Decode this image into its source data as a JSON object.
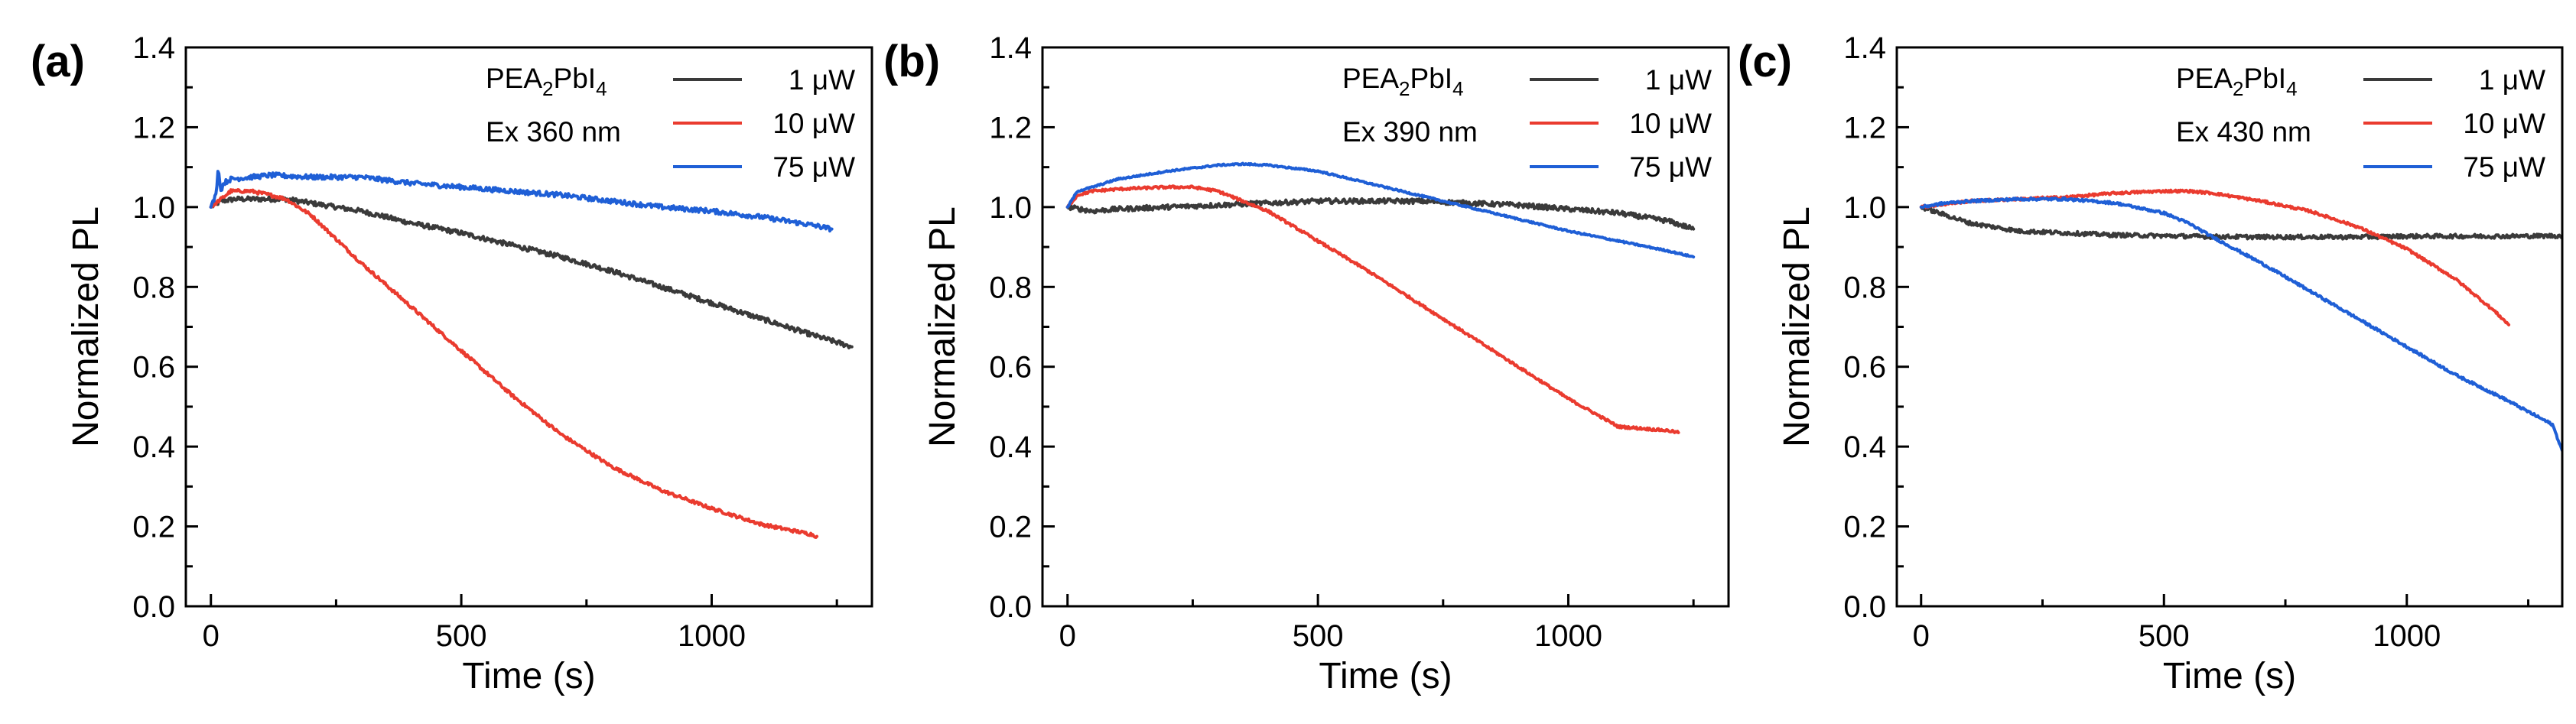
{
  "chart_data": [
    {
      "type": "line",
      "panel_label": "(a)",
      "sample": {
        "base1": "PEA",
        "sub1": "2",
        "base2": "PbI",
        "sub2": "4"
      },
      "excitation": "Ex 360 nm",
      "xlabel": "Time (s)",
      "ylabel": "Normalized PL",
      "xlim": [
        -50,
        1320
      ],
      "ylim": [
        0.0,
        1.4
      ],
      "xticks": [
        0,
        500,
        1000
      ],
      "xtick_labels": [
        "0",
        "500",
        "1000"
      ],
      "yticks": [
        0.0,
        0.2,
        0.4,
        0.6,
        0.8,
        1.0,
        1.2,
        1.4
      ],
      "ytick_labels": [
        "0.0",
        "0.2",
        "0.4",
        "0.6",
        "0.8",
        "1.0",
        "1.2",
        "1.4"
      ],
      "legend_position": "top-right",
      "series": [
        {
          "name": "1 μW",
          "color": "#3a3a3a",
          "noise": 0.006,
          "x": [
            0,
            20,
            50,
            100,
            150,
            200,
            250,
            300,
            400,
            500,
            600,
            700,
            800,
            900,
            1000,
            1100,
            1200,
            1280
          ],
          "y": [
            1.0,
            1.015,
            1.02,
            1.02,
            1.02,
            1.01,
            1.0,
            0.99,
            0.96,
            0.935,
            0.905,
            0.875,
            0.84,
            0.8,
            0.76,
            0.72,
            0.68,
            0.65
          ]
        },
        {
          "name": "10 μW",
          "color": "#ea3b2f",
          "noise": 0.004,
          "x": [
            0,
            20,
            40,
            80,
            120,
            150,
            200,
            250,
            300,
            400,
            500,
            600,
            700,
            800,
            900,
            1000,
            1100,
            1200,
            1210
          ],
          "y": [
            1.0,
            1.02,
            1.04,
            1.04,
            1.03,
            1.02,
            0.98,
            0.92,
            0.86,
            0.75,
            0.64,
            0.53,
            0.43,
            0.35,
            0.29,
            0.245,
            0.205,
            0.18,
            0.175
          ]
        },
        {
          "name": "75 μW",
          "color": "#1f5fd6",
          "noise": 0.006,
          "x": [
            0,
            10,
            15,
            20,
            25,
            40,
            80,
            120,
            200,
            300,
            400,
            500,
            600,
            700,
            800,
            900,
            1000,
            1100,
            1200,
            1240
          ],
          "y": [
            1.0,
            1.03,
            1.1,
            1.04,
            1.06,
            1.07,
            1.075,
            1.08,
            1.075,
            1.075,
            1.06,
            1.05,
            1.04,
            1.03,
            1.015,
            1.0,
            0.99,
            0.975,
            0.955,
            0.945
          ]
        }
      ]
    },
    {
      "type": "line",
      "panel_label": "(b)",
      "sample": {
        "base1": "PEA",
        "sub1": "2",
        "base2": "PbI",
        "sub2": "4"
      },
      "excitation": "Ex 390 nm",
      "xlabel": "Time (s)",
      "ylabel": "Normalized PL",
      "xlim": [
        -50,
        1320
      ],
      "ylim": [
        0.0,
        1.4
      ],
      "xticks": [
        0,
        500,
        1000
      ],
      "xtick_labels": [
        "0",
        "500",
        "1000"
      ],
      "yticks": [
        0.0,
        0.2,
        0.4,
        0.6,
        0.8,
        1.0,
        1.2,
        1.4
      ],
      "ytick_labels": [
        "0.0",
        "0.2",
        "0.4",
        "0.6",
        "0.8",
        "1.0",
        "1.2",
        "1.4"
      ],
      "legend_position": "top-right",
      "series": [
        {
          "name": "1 μW",
          "color": "#3a3a3a",
          "noise": 0.006,
          "x": [
            0,
            50,
            100,
            200,
            300,
            400,
            500,
            600,
            700,
            800,
            900,
            1000,
            1100,
            1200,
            1250
          ],
          "y": [
            1.0,
            0.99,
            0.995,
            1.0,
            1.005,
            1.01,
            1.015,
            1.015,
            1.015,
            1.01,
            1.005,
            0.995,
            0.985,
            0.965,
            0.945
          ]
        },
        {
          "name": "10 μW",
          "color": "#ea3b2f",
          "noise": 0.003,
          "x": [
            0,
            20,
            50,
            100,
            200,
            250,
            300,
            400,
            500,
            600,
            700,
            800,
            900,
            1000,
            1100,
            1200,
            1220
          ],
          "y": [
            1.0,
            1.03,
            1.04,
            1.045,
            1.05,
            1.05,
            1.04,
            0.99,
            0.915,
            0.84,
            0.76,
            0.68,
            0.6,
            0.52,
            0.45,
            0.44,
            0.435
          ]
        },
        {
          "name": "75 μW",
          "color": "#1f5fd6",
          "noise": 0.002,
          "x": [
            0,
            20,
            50,
            100,
            200,
            300,
            350,
            400,
            500,
            600,
            700,
            800,
            900,
            1000,
            1100,
            1200,
            1250
          ],
          "y": [
            1.0,
            1.04,
            1.05,
            1.07,
            1.09,
            1.105,
            1.108,
            1.105,
            1.09,
            1.06,
            1.03,
            1.0,
            0.97,
            0.94,
            0.915,
            0.89,
            0.875
          ]
        }
      ]
    },
    {
      "type": "line",
      "panel_label": "(c)",
      "sample": {
        "base1": "PEA",
        "sub1": "2",
        "base2": "PbI",
        "sub2": "4"
      },
      "excitation": "Ex 430 nm",
      "xlabel": "Time (s)",
      "ylabel": "Normalized PL",
      "xlim": [
        -50,
        1320
      ],
      "ylim": [
        0.0,
        1.4
      ],
      "xticks": [
        0,
        500,
        1000
      ],
      "xtick_labels": [
        "0",
        "500",
        "1000"
      ],
      "yticks": [
        0.0,
        0.2,
        0.4,
        0.6,
        0.8,
        1.0,
        1.2,
        1.4
      ],
      "ytick_labels": [
        "0.0",
        "0.2",
        "0.4",
        "0.6",
        "0.8",
        "1.0",
        "1.2",
        "1.4"
      ],
      "legend_position": "top-right",
      "series": [
        {
          "name": "1 μW",
          "color": "#3a3a3a",
          "noise": 0.005,
          "x": [
            0,
            50,
            100,
            150,
            200,
            300,
            400,
            500,
            600,
            700,
            800,
            900,
            1000,
            1100,
            1200,
            1320
          ],
          "y": [
            1.0,
            0.98,
            0.96,
            0.95,
            0.94,
            0.935,
            0.93,
            0.928,
            0.926,
            0.925,
            0.925,
            0.925,
            0.927,
            0.927,
            0.927,
            0.928
          ]
        },
        {
          "name": "10 μW",
          "color": "#ea3b2f",
          "noise": 0.003,
          "x": [
            0,
            100,
            200,
            300,
            400,
            500,
            550,
            600,
            700,
            800,
            900,
            1000,
            1100,
            1180,
            1210
          ],
          "y": [
            1.0,
            1.015,
            1.02,
            1.025,
            1.035,
            1.04,
            1.04,
            1.035,
            1.015,
            0.99,
            0.95,
            0.895,
            0.82,
            0.74,
            0.705
          ]
        },
        {
          "name": "75 μW",
          "color": "#1f5fd6",
          "noise": 0.003,
          "x": [
            0,
            50,
            100,
            200,
            300,
            400,
            500,
            550,
            600,
            700,
            800,
            900,
            1000,
            1100,
            1200,
            1300,
            1320
          ],
          "y": [
            1.0,
            1.01,
            1.015,
            1.02,
            1.02,
            1.01,
            0.985,
            0.96,
            0.925,
            0.86,
            0.79,
            0.72,
            0.65,
            0.58,
            0.52,
            0.455,
            0.39
          ]
        }
      ]
    }
  ]
}
